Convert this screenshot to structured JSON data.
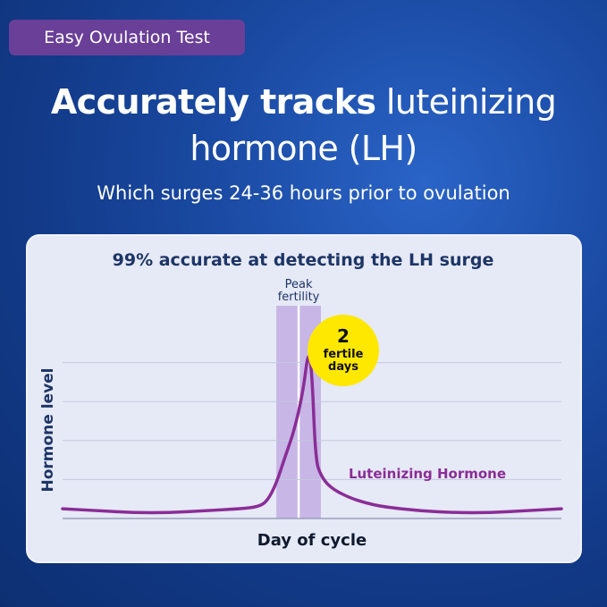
{
  "badge": "Easy Ovulation Test",
  "headline": {
    "bold": "Accurately tracks",
    "rest_line1": " luteinizing",
    "line2": "hormone (LH)"
  },
  "subheadline": "Which surges 24-36 hours prior to ovulation",
  "chart_data": {
    "type": "line",
    "title": "99% accurate at detecting the LH surge",
    "xlabel": "Day of cycle",
    "ylabel": "Hormone level",
    "grid": true,
    "xlim": [
      0,
      28
    ],
    "ylim": [
      0,
      100
    ],
    "series": [
      {
        "name": "Luteinizing Hormone",
        "x": [
          0,
          2,
          4,
          6,
          8,
          10,
          11,
          11.5,
          12,
          12.5,
          13,
          13.5,
          13.8,
          14,
          14.2,
          14.5,
          15,
          16,
          17,
          18,
          20,
          22,
          24,
          26,
          28
        ],
        "y": [
          5,
          4,
          3,
          3,
          4,
          5,
          6,
          9,
          18,
          32,
          45,
          65,
          87,
          75,
          30,
          22,
          16,
          11,
          8,
          6,
          4,
          3,
          3,
          4,
          5
        ]
      }
    ],
    "highlight": {
      "label": "Peak fertility",
      "x_range": [
        12,
        14.5
      ]
    },
    "callout": {
      "value": "2",
      "text": "fertile days"
    },
    "colors": {
      "line": "#8a2d96",
      "band": "#c7b6e6",
      "callout": "#ffe800",
      "text": "#1d3566"
    }
  }
}
